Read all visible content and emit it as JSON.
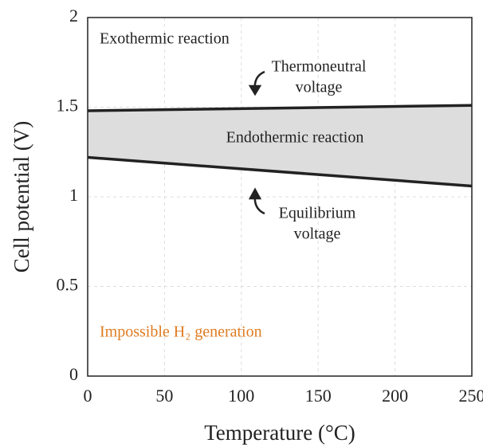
{
  "chart_data": {
    "type": "line",
    "x_label": "Temperature (°C)",
    "y_label": "Cell potential (V)",
    "x": [
      0,
      250
    ],
    "series": [
      {
        "name": "Thermoneutral voltage",
        "color": "#222222",
        "values": [
          1.48,
          1.51
        ]
      },
      {
        "name": "Equilibrium voltage",
        "color": "#222222",
        "values": [
          1.22,
          1.06
        ]
      }
    ],
    "fill_color": "#dcdddc",
    "xlim": [
      0,
      250
    ],
    "xticks": [
      0,
      50,
      100,
      150,
      200,
      250
    ],
    "ylim": [
      0,
      2
    ],
    "yticks": [
      0,
      {
        "value": 0.5,
        "label": "0.5"
      },
      1,
      {
        "value": 1.5,
        "label": "1.5"
      },
      2
    ],
    "grid": true,
    "annotations": [
      {
        "text": "Exothermic reaction"
      },
      {
        "text": "Thermoneutral"
      },
      {
        "text": "voltage"
      },
      {
        "text": "Endothermic reaction"
      },
      {
        "text": "Equilibrium"
      },
      {
        "text": "voltage"
      },
      {
        "text": "Impossible H₂ generation",
        "color": "#e07b20"
      }
    ]
  }
}
